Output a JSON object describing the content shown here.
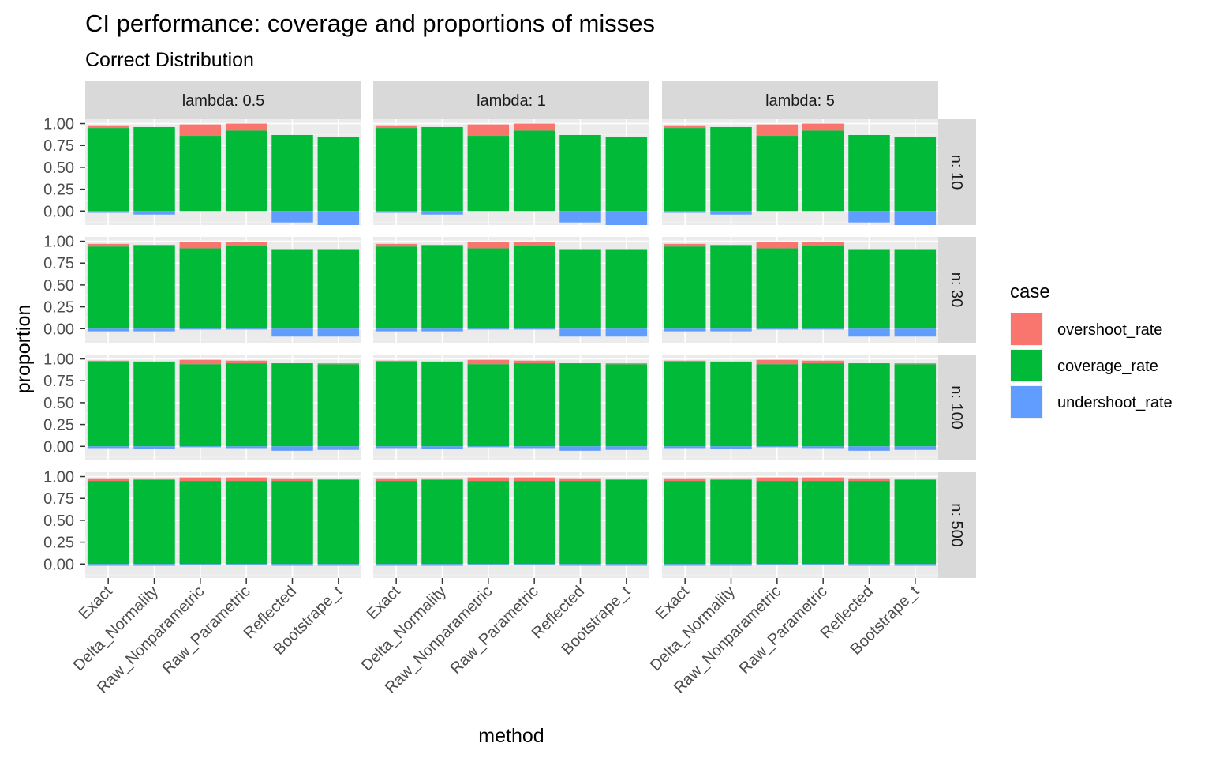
{
  "chart_data": {
    "type": "bar",
    "stacked": "diverging",
    "title": "CI performance: coverage and proportions of misses",
    "subtitle": "Correct Distribution",
    "xlabel": "method",
    "ylabel": "proportion",
    "ylim": [
      -0.16,
      1.05
    ],
    "y_ticks": [
      "0.00",
      "0.25",
      "0.50",
      "0.75",
      "1.00"
    ],
    "grid": true,
    "legend": {
      "title": "case",
      "position": "right",
      "entries": [
        {
          "label": "overshoot_rate",
          "color": "#F8766D"
        },
        {
          "label": "coverage_rate",
          "color": "#00BA38"
        },
        {
          "label": "undershoot_rate",
          "color": "#619CFF"
        }
      ]
    },
    "categories": [
      "Exact",
      "Delta_Normality",
      "Raw_Nonparametric",
      "Raw_Parametric",
      "Reflected",
      "Bootstrape_t"
    ],
    "facet_cols": [
      "lambda: 0.5",
      "lambda: 1",
      "lambda: 5"
    ],
    "facet_rows": [
      {
        "label": "n: 10",
        "series": [
          {
            "name": "coverage_rate",
            "values": [
              0.95,
              0.96,
              0.86,
              0.92,
              0.87,
              0.85
            ]
          },
          {
            "name": "overshoot_rate",
            "values": [
              0.03,
              0.0,
              0.13,
              0.08,
              0.0,
              0.0
            ]
          },
          {
            "name": "undershoot_rate",
            "values": [
              0.02,
              0.04,
              0.0,
              0.0,
              0.13,
              0.16
            ]
          }
        ]
      },
      {
        "label": "n: 30",
        "series": [
          {
            "name": "coverage_rate",
            "values": [
              0.94,
              0.95,
              0.92,
              0.95,
              0.91,
              0.91
            ]
          },
          {
            "name": "overshoot_rate",
            "values": [
              0.03,
              0.01,
              0.07,
              0.04,
              0.0,
              0.0
            ]
          },
          {
            "name": "undershoot_rate",
            "values": [
              0.03,
              0.03,
              0.01,
              0.01,
              0.09,
              0.09
            ]
          }
        ]
      },
      {
        "label": "n: 100",
        "series": [
          {
            "name": "coverage_rate",
            "values": [
              0.96,
              0.97,
              0.94,
              0.95,
              0.95,
              0.94
            ]
          },
          {
            "name": "overshoot_rate",
            "values": [
              0.02,
              0.0,
              0.05,
              0.03,
              0.0,
              0.01
            ]
          },
          {
            "name": "undershoot_rate",
            "values": [
              0.02,
              0.03,
              0.01,
              0.02,
              0.05,
              0.04
            ]
          }
        ]
      },
      {
        "label": "n: 500",
        "series": [
          {
            "name": "coverage_rate",
            "values": [
              0.95,
              0.96,
              0.95,
              0.95,
              0.95,
              0.96
            ]
          },
          {
            "name": "overshoot_rate",
            "values": [
              0.03,
              0.02,
              0.04,
              0.04,
              0.03,
              0.01
            ]
          },
          {
            "name": "undershoot_rate",
            "values": [
              0.02,
              0.02,
              0.01,
              0.01,
              0.02,
              0.02
            ]
          }
        ]
      }
    ]
  }
}
